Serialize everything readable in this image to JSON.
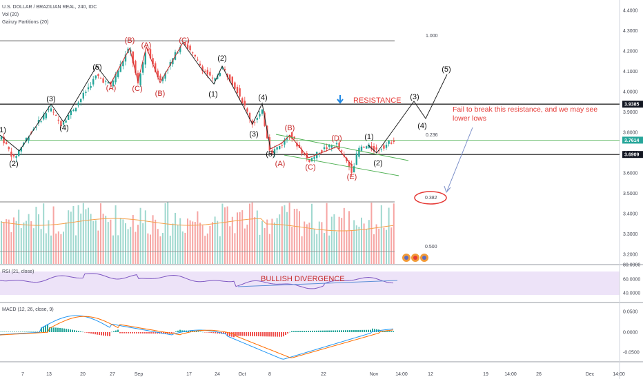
{
  "header": {
    "symbol_line": "U.S. DOLLAR / BRAZILIAN REAL, 240, IDC",
    "vol_line": "Vol (20)",
    "partitions_line": "Gainzy Partitions (20)"
  },
  "panes": {
    "rsi_label": "RSI (21, close)",
    "macd_label": "MACD (12, 26, close, 9)"
  },
  "annotations": {
    "resistance": "RESISTANCE",
    "fail_text_1": "Fail to break this resistance, and we may see",
    "fail_text_2": "lower lows",
    "bullish_divergence": "BULLISH DIVERGENCE",
    "fib_1000": "1.000",
    "fib_0236": "0.236",
    "fib_0382": "0.382",
    "fib_0500": "0.500"
  },
  "colors": {
    "up": "#26a69a",
    "down": "#ef5350",
    "wave_red": "#c62828",
    "wave_black": "#111111",
    "resistance_text": "#e53935",
    "arrow_blue": "#1e88e5",
    "rsi_band": "#e9dcf7",
    "rsi_line": "#7e57c2",
    "macd_line": "#2196f3",
    "signal_line": "#ff6d00",
    "ma_orange": "#f5a04a",
    "tag_dark": "#131722",
    "tag_green": "#26a69a"
  },
  "chart_data": {
    "type": "candlestick",
    "price_axis": {
      "ticks": [
        "4.4000",
        "4.3000",
        "4.2000",
        "4.1000",
        "4.0000",
        "3.9000",
        "3.8000",
        "3.7000",
        "3.6000",
        "3.5000",
        "3.4000",
        "3.3000",
        "3.2000"
      ],
      "ylim": [
        3.18,
        4.42
      ]
    },
    "price_tags": [
      {
        "label": "3.9385",
        "value": 3.9385,
        "style": "dark"
      },
      {
        "label": "3.7614",
        "value": 3.7614,
        "style": "green"
      },
      {
        "label": "3.6909",
        "value": 3.6909,
        "style": "dark"
      }
    ],
    "rsi_axis": {
      "ticks": [
        "80.0000",
        "60.0000",
        "40.0000"
      ]
    },
    "macd_axis": {
      "ticks": [
        "0.0500",
        "0.0000",
        "-0.0500"
      ]
    },
    "x_axis": {
      "ticks": [
        {
          "label": "7"
        },
        {
          "label": "13"
        },
        {
          "label": "20"
        },
        {
          "label": "27"
        },
        {
          "label": "Sep"
        },
        {
          "label": "17"
        },
        {
          "label": "24"
        },
        {
          "label": "Oct"
        },
        {
          "label": "8"
        },
        {
          "label": "22"
        },
        {
          "label": "Nov"
        },
        {
          "label": "14:00"
        },
        {
          "label": "12"
        },
        {
          "label": "19"
        },
        {
          "label": "14:00"
        },
        {
          "label": "26"
        },
        {
          "label": "Dec"
        },
        {
          "label": "14:00"
        }
      ]
    },
    "horizontal_lines": [
      {
        "value": 4.25
      },
      {
        "value": 3.9385
      },
      {
        "value": 3.761
      },
      {
        "value": 3.6909
      }
    ],
    "wave_labels": [
      {
        "text": "1)",
        "price": 3.79,
        "tier": 0,
        "color": "black"
      },
      {
        "text": "(2)",
        "price": 3.66,
        "tier": 0,
        "color": "black"
      },
      {
        "text": "(3)",
        "price": 3.96,
        "tier": 0,
        "color": "black"
      },
      {
        "text": "(4)",
        "price": 3.81,
        "tier": 0,
        "color": "black"
      },
      {
        "text": "(5)",
        "price": 4.11,
        "tier": 0,
        "color": "black"
      },
      {
        "text": "(A)",
        "price": 4.02,
        "tier": 0,
        "color": "red"
      },
      {
        "text": "(B)",
        "price": 4.25,
        "tier": 0,
        "color": "red"
      },
      {
        "text": "(C)",
        "price": 4.01,
        "tier": 0,
        "color": "red"
      },
      {
        "text": "(A)",
        "price": 4.23,
        "tier": 0,
        "color": "red"
      },
      {
        "text": "(B)",
        "price": 3.97,
        "tier": 0,
        "color": "red"
      },
      {
        "text": "(C)",
        "price": 4.26,
        "tier": 0,
        "color": "red"
      },
      {
        "text": "(2)",
        "price": 4.16,
        "tier": 0,
        "color": "black"
      },
      {
        "text": "(1)",
        "price": 3.98,
        "tier": 0,
        "color": "black"
      },
      {
        "text": "(4)",
        "price": 3.96,
        "tier": 0,
        "color": "black"
      },
      {
        "text": "(3)",
        "price": 3.78,
        "tier": 0,
        "color": "black"
      },
      {
        "text": "(5)",
        "price": 3.69,
        "tier": 0,
        "color": "black"
      },
      {
        "text": "(A)",
        "price": 3.65,
        "tier": 0,
        "color": "red"
      },
      {
        "text": "(B)",
        "price": 3.81,
        "tier": 0,
        "color": "red"
      },
      {
        "text": "(C)",
        "price": 3.63,
        "tier": 0,
        "color": "red"
      },
      {
        "text": "(D)",
        "price": 3.77,
        "tier": 0,
        "color": "red"
      },
      {
        "text": "(E)",
        "price": 3.59,
        "tier": 0,
        "color": "red"
      },
      {
        "text": "(1)",
        "price": 3.77,
        "tier": 0,
        "color": "black"
      },
      {
        "text": "(2)",
        "price": 3.64,
        "tier": 0,
        "color": "black"
      },
      {
        "text": "(3)",
        "price": 3.96,
        "tier": 0,
        "color": "black"
      },
      {
        "text": "(4)",
        "price": 3.8,
        "tier": 0,
        "color": "black"
      },
      {
        "text": "(5)",
        "price": 4.1,
        "tier": 0,
        "color": "black"
      }
    ]
  }
}
